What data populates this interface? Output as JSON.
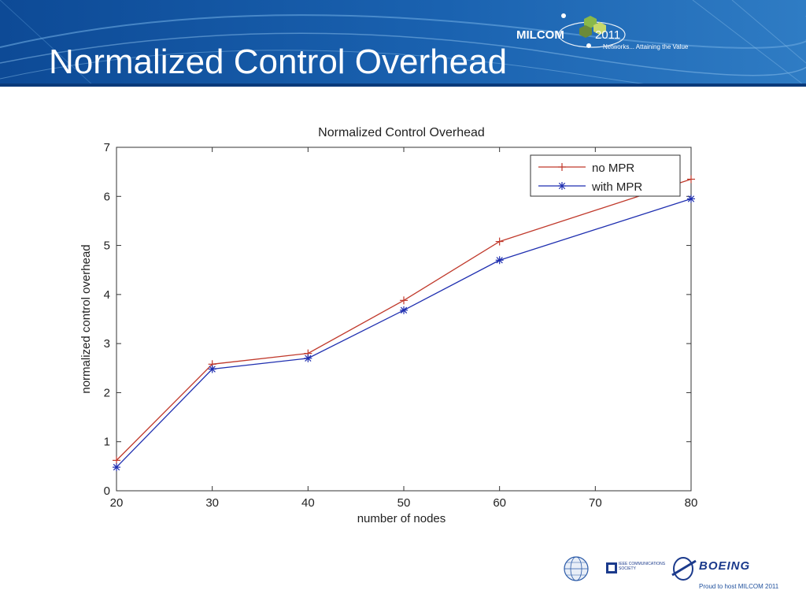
{
  "slide": {
    "title": "Normalized Control Overhead",
    "brand_colors": {
      "header_dark": "#0b3f86",
      "header_light": "#3b86c8",
      "text_blue": "#1e4f9c"
    }
  },
  "header_logo": {
    "name": "MILCOM",
    "year": "2011",
    "tagline": "Networks... Attaining the Value"
  },
  "footer": {
    "logos": [
      "afcea-globe-icon",
      "ieee-communications-society-icon",
      "boeing-icon"
    ],
    "ieee_text": "IEEE COMMUNICATIONS SOCIETY",
    "boeing_text": "BOEING",
    "host_text": "Proud to host MILCOM 2011"
  },
  "chart_data": {
    "type": "line",
    "title": "Normalized Control Overhead",
    "xlabel": "number of nodes",
    "ylabel": "normalized control overhead",
    "xlim": [
      20,
      80
    ],
    "ylim": [
      0,
      7
    ],
    "x_ticks": [
      20,
      30,
      40,
      50,
      60,
      70,
      80
    ],
    "y_ticks": [
      0,
      1,
      2,
      3,
      4,
      5,
      6,
      7
    ],
    "grid": false,
    "legend_position": "top-right",
    "x": [
      20,
      30,
      40,
      50,
      60,
      80
    ],
    "series": [
      {
        "name": "no MPR",
        "marker": "plus",
        "color": "#c0392b",
        "values": [
          0.62,
          2.58,
          2.8,
          3.88,
          5.08,
          6.35
        ]
      },
      {
        "name": "with MPR",
        "marker": "asterisk",
        "color": "#1f2fb0",
        "values": [
          0.48,
          2.48,
          2.7,
          3.68,
          4.7,
          5.95
        ]
      }
    ]
  }
}
